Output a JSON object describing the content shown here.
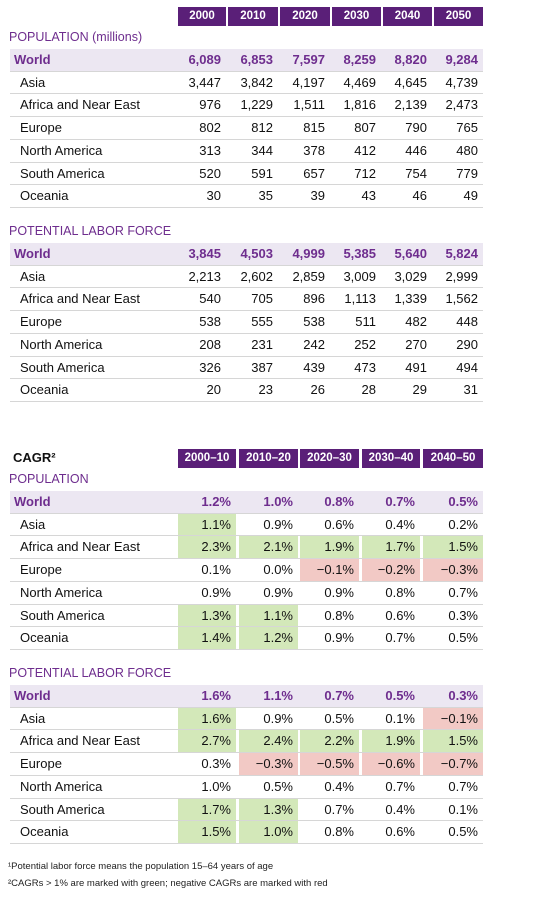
{
  "colors": {
    "positive": "#d3e8b9",
    "negative": "#f2c9c5"
  },
  "population_table": {
    "columns": [
      "2000",
      "2010",
      "2020",
      "2030",
      "2040",
      "2050"
    ],
    "sections": [
      {
        "title": "POPULATION (millions)",
        "rows": [
          {
            "label": "World",
            "values": [
              "6,089",
              "6,853",
              "7,597",
              "8,259",
              "8,820",
              "9,284"
            ]
          },
          {
            "label": "Asia",
            "values": [
              "3,447",
              "3,842",
              "4,197",
              "4,469",
              "4,645",
              "4,739"
            ]
          },
          {
            "label": "Africa and Near East",
            "values": [
              "976",
              "1,229",
              "1,511",
              "1,816",
              "2,139",
              "2,473"
            ]
          },
          {
            "label": "Europe",
            "values": [
              "802",
              "812",
              "815",
              "807",
              "790",
              "765"
            ]
          },
          {
            "label": "North America",
            "values": [
              "313",
              "344",
              "378",
              "412",
              "446",
              "480"
            ]
          },
          {
            "label": "South America",
            "values": [
              "520",
              "591",
              "657",
              "712",
              "754",
              "779"
            ]
          },
          {
            "label": "Oceania",
            "values": [
              "30",
              "35",
              "39",
              "43",
              "46",
              "49"
            ]
          }
        ]
      },
      {
        "title": "POTENTIAL LABOR FORCE",
        "rows": [
          {
            "label": "World",
            "values": [
              "3,845",
              "4,503",
              "4,999",
              "5,385",
              "5,640",
              "5,824"
            ]
          },
          {
            "label": "Asia",
            "values": [
              "2,213",
              "2,602",
              "2,859",
              "3,009",
              "3,029",
              "2,999"
            ]
          },
          {
            "label": "Africa and Near East",
            "values": [
              "540",
              "705",
              "896",
              "1,113",
              "1,339",
              "1,562"
            ]
          },
          {
            "label": "Europe",
            "values": [
              "538",
              "555",
              "538",
              "511",
              "482",
              "448"
            ]
          },
          {
            "label": "North America",
            "values": [
              "208",
              "231",
              "242",
              "252",
              "270",
              "290"
            ]
          },
          {
            "label": "South America",
            "values": [
              "326",
              "387",
              "439",
              "473",
              "491",
              "494"
            ]
          },
          {
            "label": "Oceania",
            "values": [
              "20",
              "23",
              "26",
              "28",
              "29",
              "31"
            ]
          }
        ]
      }
    ]
  },
  "cagr_table": {
    "title": "CAGR²",
    "columns": [
      "2000–10",
      "2010–20",
      "2020–30",
      "2030–40",
      "2040–50"
    ],
    "sections": [
      {
        "title": "POPULATION",
        "rows": [
          {
            "label": "World",
            "values": [
              "1.2%",
              "1.0%",
              "0.8%",
              "0.7%",
              "0.5%"
            ]
          },
          {
            "label": "Asia",
            "values": [
              "1.1%",
              "0.9%",
              "0.6%",
              "0.4%",
              "0.2%"
            ],
            "marks": [
              "positive",
              null,
              null,
              null,
              null
            ]
          },
          {
            "label": "Africa and Near East",
            "values": [
              "2.3%",
              "2.1%",
              "1.9%",
              "1.7%",
              "1.5%"
            ],
            "marks": [
              "positive",
              "positive",
              "positive",
              "positive",
              "positive"
            ]
          },
          {
            "label": "Europe",
            "values": [
              "0.1%",
              "0.0%",
              "−0.1%",
              "−0.2%",
              "−0.3%"
            ],
            "marks": [
              null,
              null,
              "negative",
              "negative",
              "negative"
            ]
          },
          {
            "label": "North America",
            "values": [
              "0.9%",
              "0.9%",
              "0.9%",
              "0.8%",
              "0.7%"
            ]
          },
          {
            "label": "South America",
            "values": [
              "1.3%",
              "1.1%",
              "0.8%",
              "0.6%",
              "0.3%"
            ],
            "marks": [
              "positive",
              "positive",
              null,
              null,
              null
            ]
          },
          {
            "label": "Oceania",
            "values": [
              "1.4%",
              "1.2%",
              "0.9%",
              "0.7%",
              "0.5%"
            ],
            "marks": [
              "positive",
              "positive",
              null,
              null,
              null
            ]
          }
        ]
      },
      {
        "title": "POTENTIAL LABOR FORCE",
        "rows": [
          {
            "label": "World",
            "values": [
              "1.6%",
              "1.1%",
              "0.7%",
              "0.5%",
              "0.3%"
            ]
          },
          {
            "label": "Asia",
            "values": [
              "1.6%",
              "0.9%",
              "0.5%",
              "0.1%",
              "−0.1%"
            ],
            "marks": [
              "positive",
              null,
              null,
              null,
              "negative"
            ]
          },
          {
            "label": "Africa and Near East",
            "values": [
              "2.7%",
              "2.4%",
              "2.2%",
              "1.9%",
              "1.5%"
            ],
            "marks": [
              "positive",
              "positive",
              "positive",
              "positive",
              "positive"
            ]
          },
          {
            "label": "Europe",
            "values": [
              "0.3%",
              "−0.3%",
              "−0.5%",
              "−0.6%",
              "−0.7%"
            ],
            "marks": [
              null,
              "negative",
              "negative",
              "negative",
              "negative"
            ]
          },
          {
            "label": "North America",
            "values": [
              "1.0%",
              "0.5%",
              "0.4%",
              "0.7%",
              "0.7%"
            ]
          },
          {
            "label": "South America",
            "values": [
              "1.7%",
              "1.3%",
              "0.7%",
              "0.4%",
              "0.1%"
            ],
            "marks": [
              "positive",
              "positive",
              null,
              null,
              null
            ]
          },
          {
            "label": "Oceania",
            "values": [
              "1.5%",
              "1.0%",
              "0.8%",
              "0.6%",
              "0.5%"
            ],
            "marks": [
              "positive",
              "positive",
              null,
              null,
              null
            ]
          }
        ]
      }
    ]
  },
  "footnotes": [
    "¹Potential labor force means the population 15–64 years of age",
    "²CAGRs > 1% are marked with green; negative CAGRs are marked with red"
  ]
}
